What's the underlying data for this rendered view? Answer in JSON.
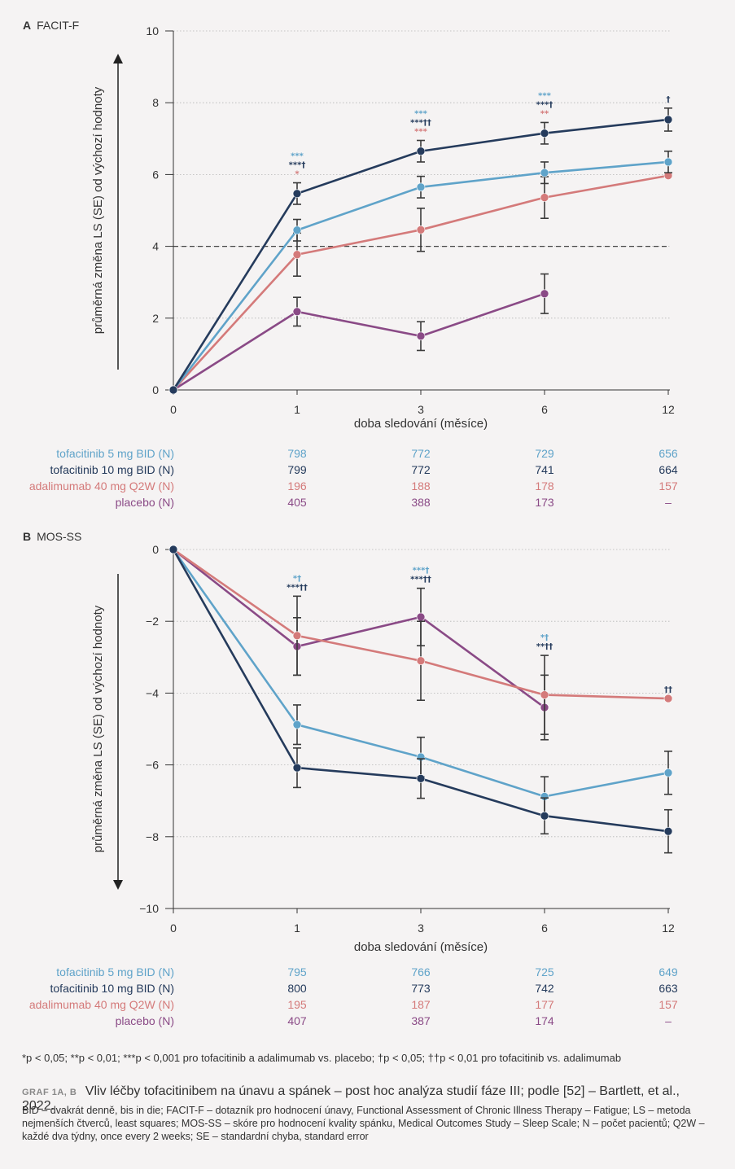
{
  "colors": {
    "tofa5": "#5fa3c9",
    "tofa10": "#253b5c",
    "adalimumab": "#d47a7a",
    "placebo": "#8a4a86",
    "axis": "#333333",
    "grid": "#b5b5b5"
  },
  "chart_data": [
    {
      "type": "line",
      "panel_letter": "A",
      "title": "FACIT-F",
      "xlabel": "doba sledování (měsíce)",
      "ylabel": "průměrná změna LS (SE) od výchozí hodnoty",
      "categories": [
        "0",
        "1",
        "3",
        "6",
        "12"
      ],
      "ylim": [
        0,
        10
      ],
      "yticks": [
        0,
        2,
        4,
        6,
        8,
        10
      ],
      "reference_line": 4,
      "grid": "dotted horizontal",
      "series": [
        {
          "name": "tofacitinib 5 mg BID (N)",
          "color_key": "tofa5",
          "values": [
            0,
            4.45,
            5.65,
            6.05,
            6.35
          ],
          "err": [
            0,
            0.3,
            0.3,
            0.3,
            0.3
          ],
          "n": [
            "798",
            "772",
            "729",
            "656"
          ]
        },
        {
          "name": "tofacitinib 10 mg BID (N)",
          "color_key": "tofa10",
          "values": [
            0,
            5.47,
            6.65,
            7.15,
            7.53
          ],
          "err": [
            0,
            0.3,
            0.3,
            0.3,
            0.32
          ],
          "n": [
            "799",
            "772",
            "741",
            "664"
          ]
        },
        {
          "name": "adalimumab 40 mg Q2W (N)",
          "color_key": "adalimumab",
          "values": [
            0,
            3.77,
            4.46,
            5.36,
            5.97
          ],
          "err": [
            0,
            0.6,
            0.6,
            0.58,
            0
          ],
          "n": [
            "196",
            "188",
            "178",
            "157"
          ]
        },
        {
          "name": "placebo (N)",
          "color_key": "placebo",
          "values": [
            0,
            2.18,
            1.5,
            2.68,
            null
          ],
          "err": [
            0,
            0.4,
            0.4,
            0.55,
            0
          ],
          "n": [
            "405",
            "388",
            "173",
            "–"
          ]
        }
      ],
      "annotations": [
        {
          "x": "1",
          "lines": [
            {
              "text": "***",
              "color_key": "tofa5"
            },
            {
              "text": "***†",
              "color_key": "tofa10"
            },
            {
              "text": "*",
              "color_key": "adalimumab"
            }
          ]
        },
        {
          "x": "3",
          "lines": [
            {
              "text": "***",
              "color_key": "tofa5"
            },
            {
              "text": "***††",
              "color_key": "tofa10"
            },
            {
              "text": "***",
              "color_key": "adalimumab"
            }
          ]
        },
        {
          "x": "6",
          "lines": [
            {
              "text": "***",
              "color_key": "tofa5"
            },
            {
              "text": "***†",
              "color_key": "tofa10"
            },
            {
              "text": "**",
              "color_key": "adalimumab"
            }
          ]
        },
        {
          "x": "12",
          "lines": [
            {
              "text": "†",
              "color_key": "tofa10"
            }
          ]
        }
      ]
    },
    {
      "type": "line",
      "panel_letter": "B",
      "title": "MOS-SS",
      "xlabel": "doba sledování (měsíce)",
      "ylabel": "průměrná změna LS (SE) od výchozí hodnoty",
      "categories": [
        "0",
        "1",
        "3",
        "6",
        "12"
      ],
      "ylim": [
        -10,
        0
      ],
      "yticks": [
        0,
        -2,
        -4,
        -6,
        -8,
        -10
      ],
      "grid": "dotted horizontal",
      "series": [
        {
          "name": "tofacitinib 5 mg BID (N)",
          "color_key": "tofa5",
          "values": [
            0,
            -4.88,
            -5.78,
            -6.88,
            -6.22
          ],
          "err": [
            0,
            0.55,
            0.55,
            0.55,
            0.6
          ],
          "n": [
            "795",
            "766",
            "725",
            "649"
          ]
        },
        {
          "name": "tofacitinib 10 mg BID (N)",
          "color_key": "tofa10",
          "values": [
            0,
            -6.08,
            -6.38,
            -7.42,
            -7.85
          ],
          "err": [
            0,
            0.55,
            0.55,
            0.5,
            0.6
          ],
          "n": [
            "800",
            "773",
            "742",
            "663"
          ]
        },
        {
          "name": "adalimumab 40 mg Q2W (N)",
          "color_key": "adalimumab",
          "values": [
            0,
            -2.4,
            -3.1,
            -4.05,
            -4.15
          ],
          "err": [
            0,
            1.1,
            1.1,
            1.1,
            0
          ],
          "n": [
            "195",
            "187",
            "177",
            "157"
          ]
        },
        {
          "name": "placebo (N)",
          "color_key": "placebo",
          "values": [
            0,
            -2.7,
            -1.88,
            -4.4,
            null
          ],
          "err": [
            0,
            0.8,
            0.8,
            0.9,
            0
          ],
          "n": [
            "407",
            "387",
            "174",
            "–"
          ]
        }
      ],
      "annotations": [
        {
          "x": "1",
          "lines": [
            {
              "text": "*†",
              "color_key": "tofa5"
            },
            {
              "text": "***††",
              "color_key": "tofa10"
            }
          ]
        },
        {
          "x": "3",
          "lines": [
            {
              "text": "***†",
              "color_key": "tofa5"
            },
            {
              "text": "***††",
              "color_key": "tofa10"
            }
          ]
        },
        {
          "x": "6",
          "lines": [
            {
              "text": "*†",
              "color_key": "tofa5"
            },
            {
              "text": "**††",
              "color_key": "tofa10"
            }
          ]
        },
        {
          "x": "12",
          "lines": [
            {
              "text": "††",
              "color_key": "tofa10"
            }
          ]
        }
      ]
    }
  ],
  "footnote": "*p < 0,05; **p < 0,01; ***p < 0,001 pro tofacitinib a adalimumab vs. placebo; †p < 0,05; ††p < 0,01 pro tofacitinib vs. adalimumab",
  "caption": {
    "label": "GRAF 1A, B",
    "text": "Vliv léčby tofacitinibem na únavu a spánek – post hoc analýza studií fáze III; podle [52] – Bartlett, et al., 2022."
  },
  "abbreviations": "BID – dvakrát denně, bis in die; FACIT-F – dotazník pro hodnocení únavy, Functional Assessment of Chronic Illness Therapy – Fatigue; LS – metoda nejmenších čtverců, least squares; MOS-SS – skóre pro hodnocení kvality spánku, Medical Outcomes Study – Sleep Scale; N – počet pacientů; Q2W – každé dva týdny, once every 2 weeks; SE – standardní chyba, standard error"
}
